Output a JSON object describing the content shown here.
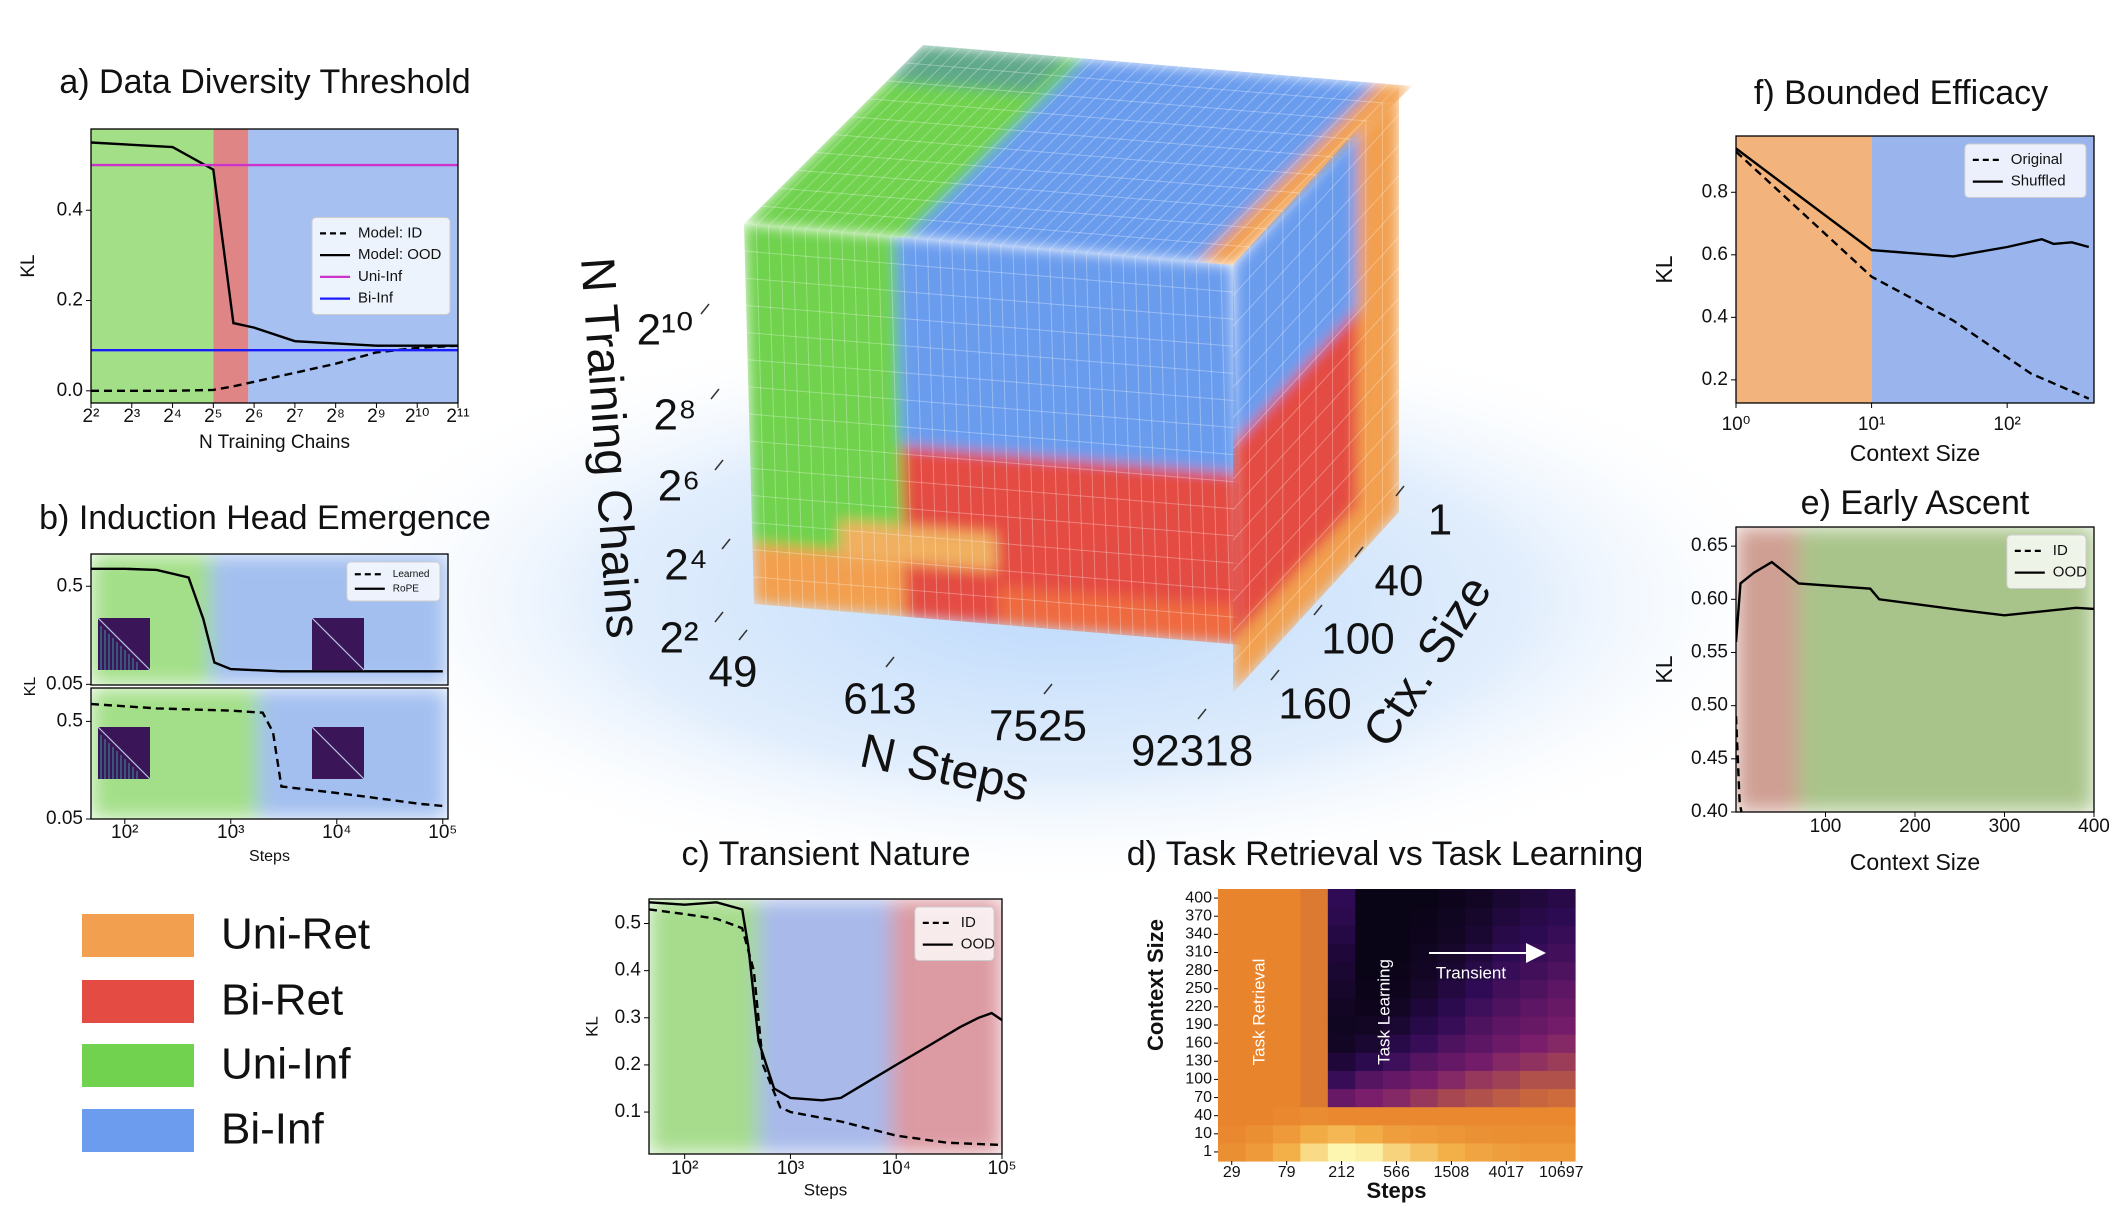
{
  "chart_data": [
    {
      "type": "line",
      "title": "a) Data Diversity Threshold",
      "x_label": "N Training Chains",
      "y_label": "KL",
      "x_scale": "log",
      "xlim": [
        4,
        2048
      ],
      "ylim": [
        -0.027,
        0.58
      ],
      "xticks": [
        {
          "value": 4,
          "label": "2²"
        },
        {
          "value": 8,
          "label": "2³"
        },
        {
          "value": 16,
          "label": "2⁴"
        },
        {
          "value": 32,
          "label": "2⁵"
        },
        {
          "value": 64,
          "label": "2⁶"
        },
        {
          "value": 128,
          "label": "2⁷"
        },
        {
          "value": 256,
          "label": "2⁸"
        },
        {
          "value": 512,
          "label": "2⁹"
        },
        {
          "value": 1024,
          "label": "2¹⁰"
        },
        {
          "value": 2048,
          "label": "2¹¹"
        }
      ],
      "yticks": [
        {
          "value": 0,
          "label": "0.0"
        },
        0.2,
        0.4
      ],
      "regions": [
        {
          "from": 4,
          "to": 32,
          "color": "#a2df87"
        },
        {
          "from": 32,
          "to": 58,
          "color": "#df8585"
        },
        {
          "from": 58,
          "to": 2048,
          "color": "#a6c0f2"
        }
      ],
      "legend": "center right",
      "series": [
        {
          "name": "Model: ID",
          "color": "#000000",
          "style": "dashed",
          "x": [
            4,
            8,
            16,
            32,
            45,
            64,
            128,
            256,
            512,
            1024,
            2048
          ],
          "values": [
            0.0,
            0.0,
            0.0,
            0.002,
            0.01,
            0.02,
            0.04,
            0.06,
            0.085,
            0.095,
            0.1
          ]
        },
        {
          "name": "Model: OOD",
          "color": "#000000",
          "style": "solid",
          "x": [
            4,
            8,
            16,
            32,
            45,
            64,
            128,
            256,
            512,
            1024,
            2048
          ],
          "values": [
            0.55,
            0.545,
            0.54,
            0.49,
            0.15,
            0.14,
            0.11,
            0.105,
            0.1,
            0.1,
            0.1
          ]
        },
        {
          "name": "Uni-Inf",
          "color": "#cc33cc",
          "style": "solid",
          "x": [
            4,
            2048
          ],
          "values": [
            0.5,
            0.5
          ]
        },
        {
          "name": "Bi-Inf",
          "color": "#1a1aff",
          "style": "solid",
          "x": [
            4,
            2048
          ],
          "values": [
            0.09,
            0.09
          ]
        }
      ]
    },
    {
      "type": "line",
      "title": "b) Induction Head Emergence",
      "x_label": "Steps",
      "y_label": "KL",
      "x_scale": "log",
      "xlim": [
        48,
        112000
      ],
      "region_blend": true,
      "xticks": [
        {
          "value": 100,
          "label": "10²"
        },
        {
          "value": 1000,
          "label": "10³"
        },
        {
          "value": 10000,
          "label": "10⁴"
        },
        {
          "value": 100000,
          "label": "10⁵"
        }
      ],
      "panels": [
        {
          "ylim": [
            0.047,
            0.648
          ],
          "yticks": [
            0.5,
            0.05
          ],
          "regions": [
            {
              "from": 48,
              "to": 650,
              "color": "#a3df88"
            },
            {
              "from": 650,
              "to": 112000,
              "color": "#a3bff0"
            }
          ]
        },
        {
          "ylim": [
            0.05,
            0.654
          ],
          "yticks": [
            0.5,
            0.05
          ],
          "regions": [
            {
              "from": 48,
              "to": 1800,
              "color": "#a3df88"
            },
            {
              "from": 1800,
              "to": 112000,
              "color": "#a3bff0"
            }
          ]
        }
      ],
      "legend": "upper right",
      "series": [
        {
          "name": "Learned",
          "color": "#000000",
          "style": "dashed",
          "panel": 1,
          "x": [
            48,
            200,
            1000,
            2000,
            2500,
            3000,
            10000,
            30000,
            60000,
            100000
          ],
          "values": [
            0.58,
            0.56,
            0.55,
            0.54,
            0.45,
            0.2,
            0.17,
            0.14,
            0.12,
            0.11
          ]
        },
        {
          "name": "RoPE",
          "color": "#000000",
          "style": "solid",
          "panel": 0,
          "x": [
            48,
            100,
            200,
            400,
            550,
            700,
            1000,
            3000,
            10000,
            100000
          ],
          "values": [
            0.58,
            0.58,
            0.575,
            0.54,
            0.35,
            0.15,
            0.12,
            0.11,
            0.11,
            0.11
          ]
        }
      ]
    },
    {
      "type": "cube",
      "axes": [
        {
          "label": "N Training Chains",
          "ticks": [
            {
              "value": 4,
              "label": "2²"
            },
            {
              "value": 16,
              "label": "2⁴"
            },
            {
              "value": 64,
              "label": "2⁶"
            },
            {
              "value": 256,
              "label": "2⁸"
            },
            {
              "value": 1024,
              "label": "2¹⁰"
            }
          ]
        },
        {
          "label": "N Steps",
          "ticks": [
            49,
            613,
            7525,
            92318
          ]
        },
        {
          "label": "Ctx. Size",
          "ticks": [
            1,
            40,
            100,
            160
          ]
        }
      ]
    },
    {
      "type": "line",
      "title": "c) Transient Nature",
      "x_label": "Steps",
      "y_label": "KL",
      "x_scale": "log",
      "xlim": [
        46,
        100000
      ],
      "ylim": [
        0.011,
        0.552
      ],
      "region_blend": true,
      "xticks": [
        {
          "value": 100,
          "label": "10²"
        },
        {
          "value": 1000,
          "label": "10³"
        },
        {
          "value": 10000,
          "label": "10⁴"
        },
        {
          "value": 100000,
          "label": "10⁵"
        }
      ],
      "yticks": [
        0.1,
        0.2,
        0.3,
        0.4,
        0.5
      ],
      "regions": [
        {
          "from": 46,
          "to": 500,
          "color": "#a6dc8c"
        },
        {
          "from": 500,
          "to": 9000,
          "color": "#a8b9ea"
        },
        {
          "from": 9000,
          "to": 100000,
          "color": "#dc9aa2"
        }
      ],
      "legend": "upper right",
      "series": [
        {
          "name": "ID",
          "color": "#000000",
          "style": "dashed",
          "x": [
            46,
            100,
            200,
            350,
            450,
            550,
            800,
            1000,
            3000,
            10000,
            30000,
            100000
          ],
          "values": [
            0.53,
            0.52,
            0.51,
            0.49,
            0.4,
            0.2,
            0.11,
            0.1,
            0.08,
            0.05,
            0.035,
            0.03
          ]
        },
        {
          "name": "OOD",
          "color": "#000000",
          "style": "solid",
          "x": [
            46,
            100,
            200,
            350,
            400,
            500,
            700,
            1000,
            2000,
            3000,
            5000,
            10000,
            20000,
            40000,
            60000,
            80000,
            100000
          ],
          "values": [
            0.545,
            0.54,
            0.545,
            0.53,
            0.45,
            0.25,
            0.15,
            0.13,
            0.125,
            0.13,
            0.16,
            0.2,
            0.24,
            0.28,
            0.3,
            0.31,
            0.295
          ]
        }
      ]
    },
    {
      "type": "heatmap",
      "title": "d) Task Retrieval vs Task Learning",
      "x_label": "Steps",
      "y_label": "Context Size",
      "x": [
        29,
        null,
        79,
        null,
        212,
        null,
        566,
        null,
        1508,
        null,
        4017,
        null,
        10697
      ],
      "y": [
        1,
        10,
        40,
        70,
        100,
        130,
        160,
        190,
        220,
        250,
        280,
        310,
        340,
        370,
        400
      ],
      "colormap": [
        "#06040f",
        "#2f0b55",
        "#7a1e6c",
        "#e8842c",
        "#f3b049",
        "#fcf6b0"
      ],
      "z": [
        [
          0.65,
          0.7,
          0.8,
          0.92,
          1,
          0.98,
          0.9,
          0.85,
          0.8,
          0.75,
          0.72,
          0.7,
          0.7
        ],
        [
          0.62,
          0.65,
          0.7,
          0.78,
          0.82,
          0.78,
          0.72,
          0.7,
          0.68,
          0.66,
          0.65,
          0.65,
          0.65
        ],
        [
          0.6,
          0.6,
          0.62,
          0.64,
          0.62,
          0.62,
          0.62,
          0.62,
          0.62,
          0.62,
          0.62,
          0.62,
          0.62
        ],
        [
          0.6,
          0.6,
          0.6,
          0.58,
          0.35,
          0.4,
          0.42,
          0.45,
          0.48,
          0.5,
          0.52,
          0.54,
          0.55
        ],
        [
          0.6,
          0.6,
          0.6,
          0.58,
          0.22,
          0.3,
          0.34,
          0.38,
          0.42,
          0.45,
          0.47,
          0.5,
          0.5
        ],
        [
          0.6,
          0.6,
          0.6,
          0.58,
          0.12,
          0.18,
          0.24,
          0.3,
          0.34,
          0.38,
          0.42,
          0.44,
          0.46
        ],
        [
          0.6,
          0.6,
          0.6,
          0.58,
          0.06,
          0.1,
          0.16,
          0.22,
          0.28,
          0.32,
          0.36,
          0.4,
          0.42
        ],
        [
          0.6,
          0.6,
          0.6,
          0.58,
          0.05,
          0.06,
          0.1,
          0.16,
          0.22,
          0.28,
          0.32,
          0.35,
          0.38
        ],
        [
          0.6,
          0.6,
          0.6,
          0.58,
          0.06,
          0.04,
          0.06,
          0.12,
          0.18,
          0.24,
          0.28,
          0.32,
          0.35
        ],
        [
          0.6,
          0.6,
          0.6,
          0.58,
          0.08,
          0.03,
          0.04,
          0.08,
          0.14,
          0.2,
          0.25,
          0.28,
          0.32
        ],
        [
          0.6,
          0.6,
          0.6,
          0.58,
          0.1,
          0.02,
          0.03,
          0.06,
          0.1,
          0.16,
          0.22,
          0.25,
          0.28
        ],
        [
          0.6,
          0.6,
          0.6,
          0.58,
          0.12,
          0.02,
          0.02,
          0.05,
          0.08,
          0.13,
          0.19,
          0.22,
          0.25
        ],
        [
          0.6,
          0.6,
          0.6,
          0.58,
          0.15,
          0.02,
          0.02,
          0.04,
          0.06,
          0.1,
          0.16,
          0.19,
          0.22
        ],
        [
          0.6,
          0.6,
          0.6,
          0.58,
          0.18,
          0.02,
          0.02,
          0.03,
          0.05,
          0.08,
          0.13,
          0.16,
          0.19
        ],
        [
          0.6,
          0.6,
          0.6,
          0.58,
          0.2,
          0.02,
          0.02,
          0.02,
          0.04,
          0.06,
          0.1,
          0.13,
          0.16
        ]
      ],
      "annotations": [
        "Task Retrieval",
        "Task Learning",
        "Transient"
      ]
    },
    {
      "type": "line",
      "title": "e) Early Ascent",
      "x_label": "Context Size",
      "y_label": "KL",
      "xlim": [
        0,
        400
      ],
      "ylim": [
        0.4,
        0.668
      ],
      "region_blend": true,
      "xticks": [
        100,
        200,
        300,
        400
      ],
      "yticks": [
        {
          "value": 0.4,
          "label": "0.40"
        },
        0.45,
        {
          "value": 0.5,
          "label": "0.50"
        },
        0.55,
        {
          "value": 0.6,
          "label": "0.60"
        },
        0.65
      ],
      "regions": [
        {
          "from": 0,
          "to": 70,
          "color": "#cf9f93"
        },
        {
          "from": 70,
          "to": 400,
          "color": "#a9c48a"
        }
      ],
      "legend": "upper right",
      "series": [
        {
          "name": "ID",
          "color": "#000000",
          "style": "dashed",
          "x": [
            0,
            2,
            4,
            6
          ],
          "values": [
            0.49,
            0.45,
            0.41,
            0.4
          ]
        },
        {
          "name": "OOD",
          "color": "#000000",
          "style": "solid",
          "x": [
            0,
            5,
            20,
            40,
            70,
            150,
            160,
            250,
            300,
            380,
            400
          ],
          "values": [
            0.56,
            0.615,
            0.625,
            0.635,
            0.615,
            0.61,
            0.6,
            0.59,
            0.585,
            0.592,
            0.591
          ]
        }
      ]
    },
    {
      "type": "line",
      "title": "f) Bounded Efficacy",
      "x_label": "Context Size",
      "y_label": "KL",
      "x_scale": "log",
      "xlim": [
        1,
        437
      ],
      "ylim": [
        0.126,
        0.98
      ],
      "xticks": [
        {
          "value": 1,
          "label": "10⁰"
        },
        {
          "value": 10,
          "label": "10¹"
        },
        {
          "value": 100,
          "label": "10²"
        }
      ],
      "yticks": [
        0.2,
        0.4,
        0.6,
        0.8
      ],
      "regions": [
        {
          "from": 1,
          "to": 10,
          "color": "#f2b47c"
        },
        {
          "from": 10,
          "to": 437,
          "color": "#9ab5ee"
        }
      ],
      "legend": "upper right",
      "series": [
        {
          "name": "Original",
          "color": "#000000",
          "style": "dashed",
          "x": [
            1,
            10,
            40,
            150,
            400
          ],
          "values": [
            0.93,
            0.53,
            0.39,
            0.22,
            0.14
          ]
        },
        {
          "name": "Shuffled",
          "color": "#000000",
          "style": "solid",
          "x": [
            1,
            10,
            40,
            100,
            180,
            220,
            300,
            400
          ],
          "values": [
            0.94,
            0.615,
            0.595,
            0.625,
            0.65,
            0.635,
            0.64,
            0.625
          ]
        }
      ]
    }
  ],
  "legend": {
    "items": [
      {
        "name": "Uni-Ret",
        "color": "#f2a04f"
      },
      {
        "name": "Bi-Ret",
        "color": "#e44b43"
      },
      {
        "name": "Uni-Inf",
        "color": "#70d24e"
      },
      {
        "name": "Bi-Inf",
        "color": "#6b9cee"
      }
    ]
  }
}
